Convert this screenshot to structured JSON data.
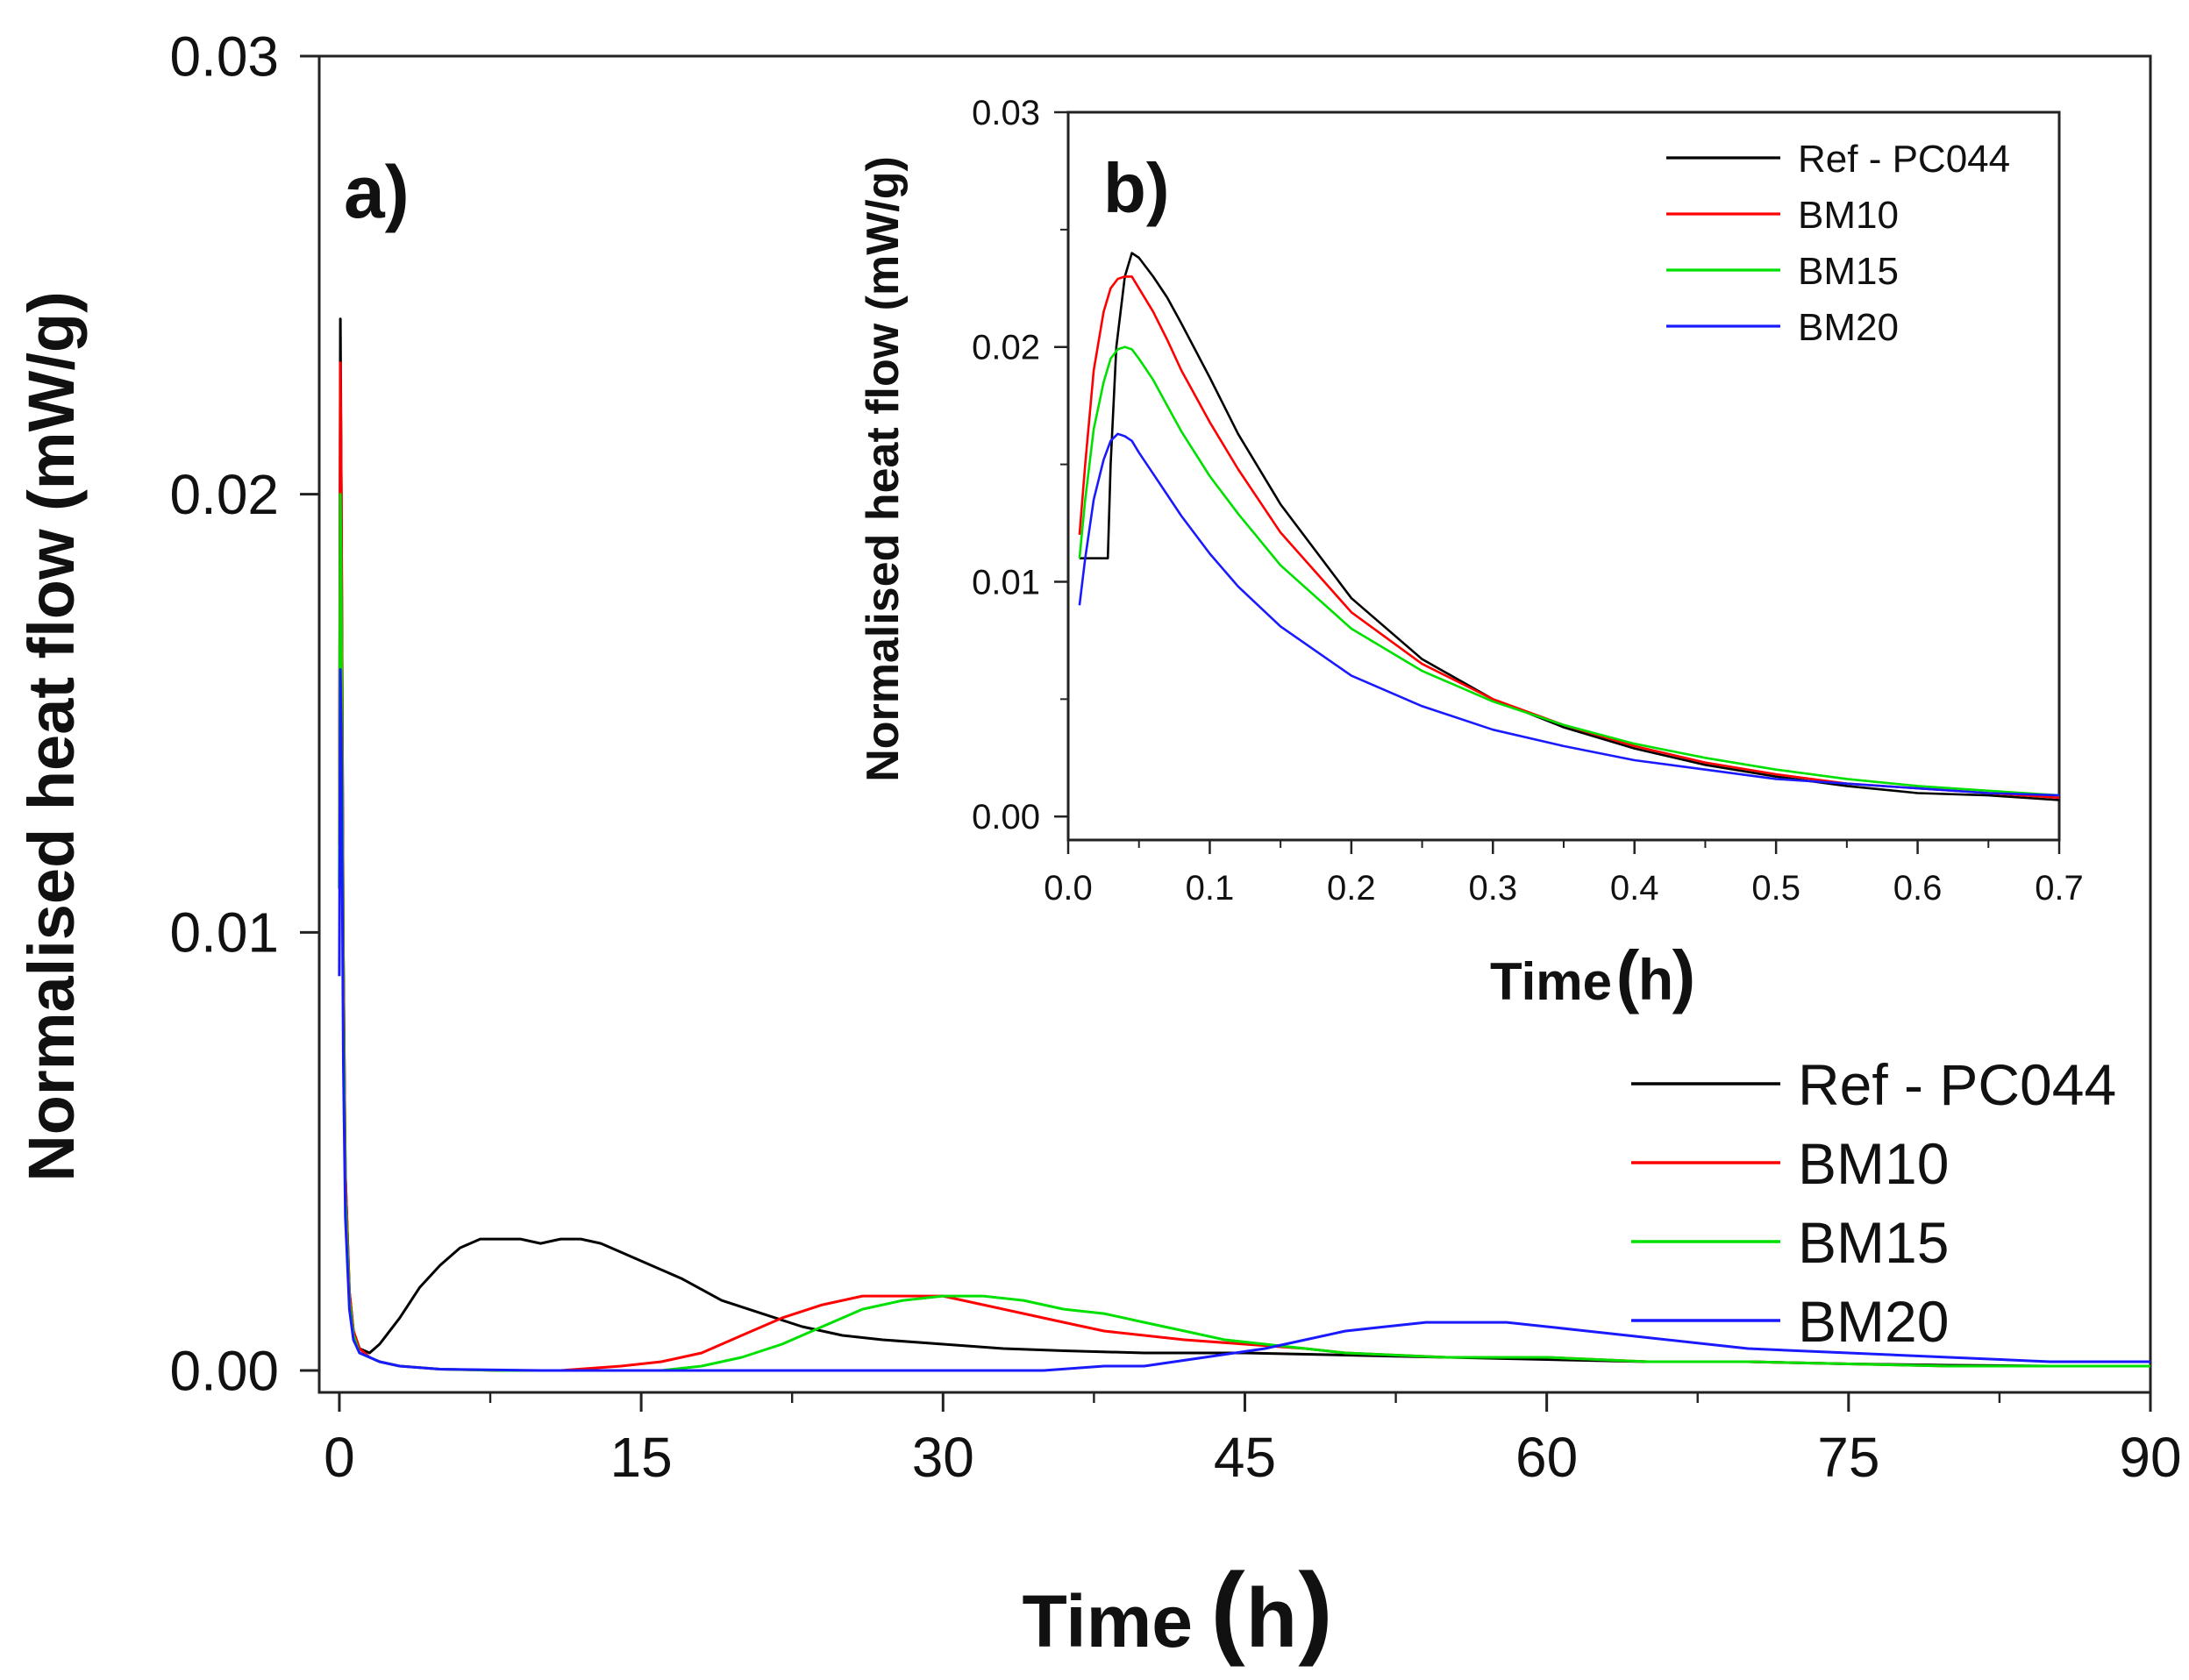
{
  "chart_data": [
    {
      "panel": "a)",
      "type": "line",
      "xlabel": "Time",
      "xunit": "h",
      "ylabel": "Normalised heat flow (mW/g)",
      "xlim": [
        -1,
        90
      ],
      "ylim": [
        -0.0005,
        0.03
      ],
      "xticks": [
        0,
        15,
        30,
        45,
        60,
        75,
        90
      ],
      "yticks": [
        0.0,
        0.01,
        0.02,
        0.03
      ],
      "ytick_labels": [
        "0.00",
        "0.01",
        "0.02",
        "0.03"
      ],
      "legend_position": "bottom-right",
      "series": [
        {
          "name": "Ref - PC044",
          "color": "#000000",
          "x": [
            0,
            0.05,
            0.1,
            0.2,
            0.3,
            0.5,
            0.7,
            1.0,
            1.5,
            2,
            3,
            4,
            5,
            6,
            7,
            8,
            9,
            10,
            11,
            12,
            13,
            14,
            15,
            17,
            19,
            21,
            23,
            25,
            27,
            30,
            33,
            36,
            40,
            45,
            50,
            55,
            60,
            65,
            70,
            75,
            80,
            85,
            90
          ],
          "y": [
            0.011,
            0.024,
            0.02,
            0.0095,
            0.0045,
            0.0018,
            0.0009,
            0.0005,
            0.0004,
            0.0006,
            0.0012,
            0.0019,
            0.0024,
            0.0028,
            0.003,
            0.003,
            0.003,
            0.0029,
            0.003,
            0.003,
            0.0029,
            0.0027,
            0.0025,
            0.0021,
            0.0016,
            0.0013,
            0.001,
            0.0008,
            0.0007,
            0.0006,
            0.0005,
            0.00045,
            0.0004,
            0.0004,
            0.00035,
            0.0003,
            0.00025,
            0.0002,
            0.0002,
            0.00015,
            0.00012,
            0.0001,
            0.0001
          ]
        },
        {
          "name": "BM10",
          "color": "#ff0000",
          "x": [
            0,
            0.05,
            0.1,
            0.2,
            0.3,
            0.5,
            0.7,
            1.0,
            1.5,
            2,
            3,
            5,
            8,
            11,
            14,
            16,
            18,
            20,
            22,
            24,
            26,
            28,
            30,
            32,
            34,
            36,
            38,
            40,
            42,
            45,
            48,
            50,
            55,
            60,
            65,
            70,
            75,
            80,
            85,
            90
          ],
          "y": [
            0.012,
            0.023,
            0.02,
            0.0095,
            0.0045,
            0.0018,
            0.0009,
            0.0005,
            0.0003,
            0.0002,
            0.0001,
            3e-05,
            0.0,
            0.0,
            0.0001,
            0.0002,
            0.0004,
            0.0008,
            0.0012,
            0.0015,
            0.0017,
            0.0017,
            0.0017,
            0.0015,
            0.0013,
            0.0011,
            0.0009,
            0.0008,
            0.0007,
            0.0006,
            0.0005,
            0.0004,
            0.0003,
            0.0003,
            0.0002,
            0.0002,
            0.00015,
            0.0001,
            0.0001,
            0.0001
          ]
        },
        {
          "name": "BM15",
          "color": "#00e000",
          "x": [
            0,
            0.05,
            0.1,
            0.2,
            0.3,
            0.5,
            0.7,
            1.0,
            1.5,
            2,
            3,
            5,
            8,
            12,
            16,
            18,
            20,
            22,
            24,
            26,
            28,
            30,
            32,
            34,
            36,
            38,
            40,
            42,
            44,
            46,
            48,
            50,
            55,
            60,
            65,
            70,
            75,
            80,
            85,
            90
          ],
          "y": [
            0.011,
            0.02,
            0.0175,
            0.0085,
            0.004,
            0.0016,
            0.0008,
            0.0004,
            0.0003,
            0.0002,
            0.0001,
            3e-05,
            0.0,
            0.0,
            0.0,
            0.0001,
            0.0003,
            0.0006,
            0.001,
            0.0014,
            0.0016,
            0.0017,
            0.0017,
            0.0016,
            0.0014,
            0.0013,
            0.0011,
            0.0009,
            0.0007,
            0.0006,
            0.0005,
            0.0004,
            0.0003,
            0.0003,
            0.0002,
            0.0002,
            0.00015,
            0.0001,
            0.0001,
            0.0001
          ]
        },
        {
          "name": "BM20",
          "color": "#1a1aff",
          "x": [
            0,
            0.05,
            0.1,
            0.2,
            0.3,
            0.5,
            0.7,
            1.0,
            1.5,
            2,
            3,
            5,
            10,
            20,
            30,
            35,
            38,
            40,
            43,
            46,
            48,
            50,
            52,
            54,
            56,
            58,
            60,
            62,
            64,
            66,
            68,
            70,
            75,
            80,
            85,
            90
          ],
          "y": [
            0.009,
            0.016,
            0.0145,
            0.007,
            0.0035,
            0.0014,
            0.0007,
            0.0004,
            0.0003,
            0.0002,
            0.0001,
            3e-05,
            0.0,
            0.0,
            0.0,
            0.0,
            0.0001,
            0.0001,
            0.0003,
            0.0005,
            0.0007,
            0.0009,
            0.001,
            0.0011,
            0.0011,
            0.0011,
            0.001,
            0.0009,
            0.0008,
            0.0007,
            0.0006,
            0.0005,
            0.0004,
            0.0003,
            0.0002,
            0.0002
          ]
        }
      ]
    },
    {
      "panel": "b)",
      "type": "line",
      "xlabel": "Time",
      "xunit": "h",
      "ylabel": "Normalised heat flow (mW/g)",
      "xlim": [
        0.0,
        0.7
      ],
      "ylim": [
        -0.001,
        0.03
      ],
      "xticks": [
        0.0,
        0.1,
        0.2,
        0.3,
        0.4,
        0.5,
        0.6,
        0.7
      ],
      "xtick_labels": [
        "0.0",
        "0.1",
        "0.2",
        "0.3",
        "0.4",
        "0.5",
        "0.6",
        "0.7"
      ],
      "yticks": [
        0.0,
        0.01,
        0.02,
        0.03
      ],
      "ytick_labels": [
        "0.00",
        "0.01",
        "0.02",
        "0.03"
      ],
      "legend_position": "top-right",
      "series": [
        {
          "name": "Ref - PC044",
          "color": "#000000",
          "x": [
            0.008,
            0.012,
            0.028,
            0.03,
            0.034,
            0.04,
            0.045,
            0.05,
            0.06,
            0.07,
            0.08,
            0.1,
            0.12,
            0.15,
            0.2,
            0.25,
            0.3,
            0.35,
            0.4,
            0.45,
            0.5,
            0.55,
            0.6,
            0.65,
            0.7
          ],
          "y": [
            0.011,
            0.011,
            0.011,
            0.015,
            0.02,
            0.023,
            0.024,
            0.0238,
            0.023,
            0.0221,
            0.021,
            0.0187,
            0.0163,
            0.0133,
            0.0093,
            0.0067,
            0.005,
            0.0038,
            0.0029,
            0.0022,
            0.0017,
            0.0013,
            0.001,
            0.0009,
            0.0007
          ]
        },
        {
          "name": "BM10",
          "color": "#ff0000",
          "x": [
            0.008,
            0.012,
            0.018,
            0.025,
            0.03,
            0.035,
            0.04,
            0.045,
            0.05,
            0.06,
            0.07,
            0.08,
            0.1,
            0.12,
            0.15,
            0.2,
            0.25,
            0.3,
            0.35,
            0.4,
            0.45,
            0.5,
            0.55,
            0.6,
            0.65,
            0.7
          ],
          "y": [
            0.012,
            0.015,
            0.019,
            0.0215,
            0.0225,
            0.0229,
            0.023,
            0.023,
            0.0225,
            0.0215,
            0.0203,
            0.019,
            0.0168,
            0.0148,
            0.0121,
            0.0087,
            0.0065,
            0.005,
            0.0039,
            0.003,
            0.0023,
            0.0018,
            0.0014,
            0.0012,
            0.001,
            0.0008
          ]
        },
        {
          "name": "BM15",
          "color": "#00e000",
          "x": [
            0.008,
            0.012,
            0.018,
            0.025,
            0.03,
            0.035,
            0.04,
            0.045,
            0.05,
            0.06,
            0.07,
            0.08,
            0.1,
            0.12,
            0.15,
            0.2,
            0.25,
            0.3,
            0.35,
            0.4,
            0.45,
            0.5,
            0.55,
            0.6,
            0.65,
            0.7
          ],
          "y": [
            0.011,
            0.0135,
            0.0165,
            0.0185,
            0.0195,
            0.0199,
            0.02,
            0.0199,
            0.0195,
            0.0186,
            0.0175,
            0.0164,
            0.0145,
            0.0129,
            0.0107,
            0.008,
            0.0062,
            0.0049,
            0.0039,
            0.0031,
            0.0025,
            0.002,
            0.0016,
            0.0013,
            0.0011,
            0.0009
          ]
        },
        {
          "name": "BM20",
          "color": "#1a1aff",
          "x": [
            0.008,
            0.012,
            0.018,
            0.025,
            0.03,
            0.035,
            0.04,
            0.045,
            0.05,
            0.06,
            0.07,
            0.08,
            0.1,
            0.12,
            0.15,
            0.2,
            0.25,
            0.3,
            0.35,
            0.4,
            0.45,
            0.5,
            0.55,
            0.6,
            0.65,
            0.7
          ],
          "y": [
            0.009,
            0.011,
            0.0135,
            0.0152,
            0.016,
            0.0163,
            0.0162,
            0.016,
            0.0155,
            0.0146,
            0.0137,
            0.0128,
            0.0112,
            0.0098,
            0.0081,
            0.006,
            0.0047,
            0.0037,
            0.003,
            0.0024,
            0.002,
            0.0016,
            0.0014,
            0.0012,
            0.001,
            0.0009
          ]
        }
      ]
    }
  ]
}
